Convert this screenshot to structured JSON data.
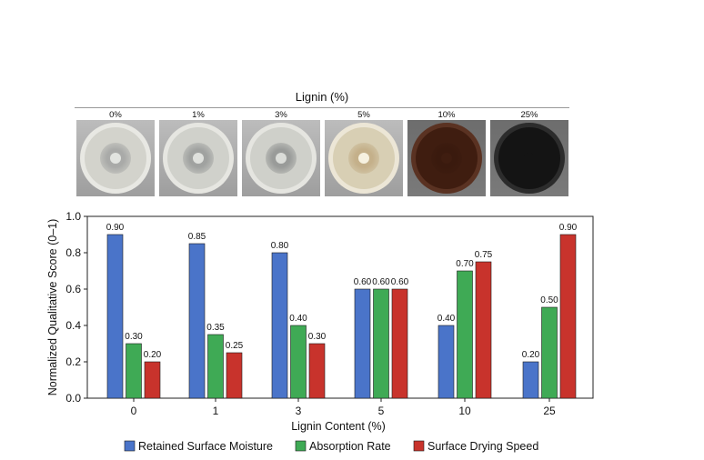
{
  "header": {
    "title": "Lignin (%)",
    "plates": [
      {
        "label": "0%",
        "medium": "#d3d3cc",
        "rim": "#e8e8e3",
        "halo": "#a9aaa8",
        "disc": "#e2e4e0"
      },
      {
        "label": "1%",
        "medium": "#d0d1cb",
        "rim": "#e6e6e1",
        "halo": "#a0a2a0",
        "disc": "#dfe1dd"
      },
      {
        "label": "3%",
        "medium": "#cfd0ca",
        "rim": "#e5e5e0",
        "halo": "#999b99",
        "disc": "#dadcd8"
      },
      {
        "label": "5%",
        "medium": "#d8cfb4",
        "rim": "#ece6d6",
        "halo": "#c4b08a",
        "disc": "#f6f1e0"
      },
      {
        "label": "10%",
        "medium": "#3f1d10",
        "rim": "#5a3222",
        "halo": "#3a1a0e",
        "disc": "#3f1d10"
      },
      {
        "label": "25%",
        "medium": "#141414",
        "rim": "#2c2c2c",
        "halo": "#141414",
        "disc": "#141414"
      }
    ]
  },
  "chart_data": {
    "type": "bar",
    "categories": [
      "0",
      "1",
      "3",
      "5",
      "10",
      "25"
    ],
    "series": [
      {
        "name": "Retained Surface Moisture",
        "color": "#4a74c9",
        "values": [
          0.9,
          0.85,
          0.8,
          0.6,
          0.4,
          0.2
        ],
        "labels": [
          "0.90",
          "0.85",
          "0.80",
          "0.60",
          "0.40",
          "0.20"
        ]
      },
      {
        "name": "Absorption Rate",
        "color": "#3faa55",
        "values": [
          0.3,
          0.35,
          0.4,
          0.6,
          0.7,
          0.5
        ],
        "labels": [
          "0.30",
          "0.35",
          "0.40",
          "0.60",
          "0.70",
          "0.50"
        ]
      },
      {
        "name": "Surface Drying Speed",
        "color": "#c8332c",
        "values": [
          0.2,
          0.25,
          0.3,
          0.6,
          0.75,
          0.9
        ],
        "labels": [
          "0.20",
          "0.25",
          "0.30",
          "0.60",
          "0.75",
          "0.90"
        ]
      }
    ],
    "xlabel": "Lignin Content (%)",
    "ylabel": "Normalized Qualitative Score (0–1)",
    "ylim": [
      0,
      1.0
    ],
    "yticks": [
      "0.0",
      "0.2",
      "0.4",
      "0.6",
      "0.8",
      "1.0"
    ],
    "ytick_values": [
      0,
      0.2,
      0.4,
      0.6,
      0.8,
      1.0
    ],
    "grid": false,
    "legend_position": "bottom"
  }
}
